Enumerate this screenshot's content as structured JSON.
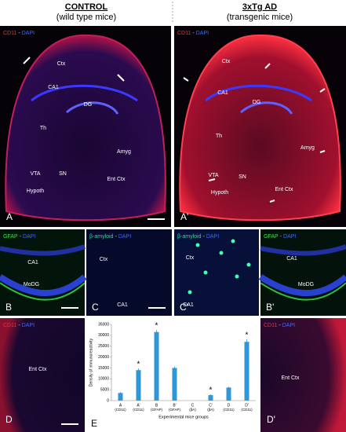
{
  "header": {
    "left": {
      "title": "CONTROL",
      "subtitle": "(wild type mice)"
    },
    "right": {
      "title": "3xTg AD",
      "subtitle": "(transgenic mice)"
    }
  },
  "panels": [
    {
      "letter": "A",
      "legend": [
        "CD11",
        "-",
        "DAPI"
      ],
      "regions": [
        "Ctx",
        "CA1",
        "DG",
        "Th",
        "Amyg",
        "VTA",
        "SN",
        "Hypoth",
        "Ent Ctx"
      ]
    },
    {
      "letter": "A'",
      "legend": [
        "CD11",
        "-",
        "DAPI"
      ],
      "regions": [
        "Ctx",
        "CA1",
        "DG",
        "Th",
        "Amyg",
        "VTA",
        "SN",
        "Hypoth",
        "Ent Ctx"
      ]
    },
    {
      "letter": "B",
      "legend": [
        "GFAP",
        "-",
        "DAPI"
      ],
      "regions": [
        "CA1",
        "MoDG"
      ]
    },
    {
      "letter": "C",
      "legend": [
        "β-amyloid",
        "-",
        "DAPI"
      ],
      "regions": [
        "Ctx",
        "CA1"
      ]
    },
    {
      "letter": "C'",
      "legend": [
        "β-amyloid",
        "-",
        "DAPI"
      ],
      "regions": [
        "Ctx",
        "CA1"
      ]
    },
    {
      "letter": "B'",
      "legend": [
        "GFAP",
        "-",
        "DAPI"
      ],
      "regions": [
        "CA1",
        "MoDG"
      ]
    },
    {
      "letter": "D",
      "legend": [
        "CD11",
        "-",
        "DAPI"
      ],
      "regions": [
        "Ent Ctx"
      ]
    },
    {
      "letter": "D'",
      "legend": [
        "CD11",
        "-",
        "DAPI"
      ],
      "regions": [
        "Ent Ctx"
      ]
    }
  ],
  "chart_data": {
    "type": "bar",
    "letter": "E",
    "ylabel": "Density of immunoreactivity",
    "xlabel": "Experimental mice groups",
    "categories": [
      "A",
      "A'",
      "B",
      "B'",
      "C",
      "C'",
      "D",
      "D'"
    ],
    "category_groups": [
      "(CD11)",
      "(CD11)",
      "(GFAP)",
      "(GFAP)",
      "(βA)",
      "(βA)",
      "(CD11)",
      "(CD11)"
    ],
    "values": [
      3500,
      14000,
      31500,
      15000,
      0,
      2500,
      6000,
      27000
    ],
    "errors": [
      400,
      800,
      1000,
      600,
      0,
      400,
      300,
      1200
    ],
    "annotations": [
      null,
      "*",
      "*",
      null,
      null,
      "*",
      null,
      "*"
    ],
    "color": "#2f97d8",
    "ylim": [
      0,
      35000
    ],
    "yticks": [
      0,
      5000,
      10000,
      15000,
      20000,
      25000,
      30000,
      35000
    ]
  }
}
